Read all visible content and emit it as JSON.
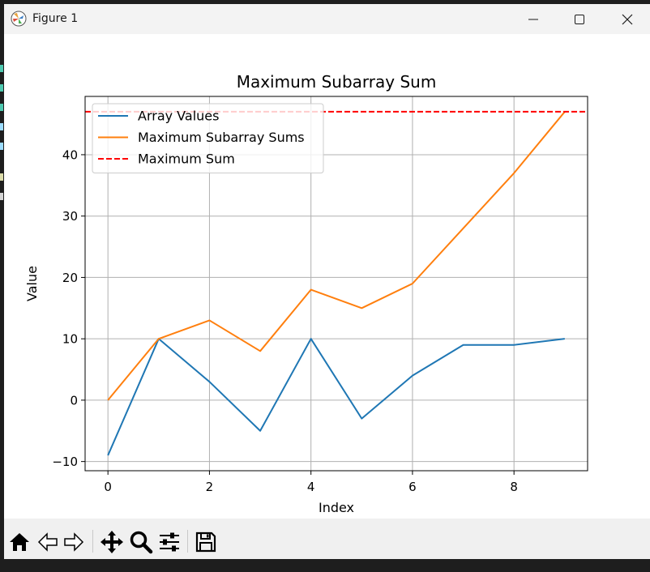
{
  "window": {
    "title": "Figure 1"
  },
  "toolbar": {
    "buttons": [
      {
        "name": "home-icon",
        "label": "Home"
      },
      {
        "name": "back-icon",
        "label": "Back"
      },
      {
        "name": "forward-icon",
        "label": "Forward"
      },
      {
        "name": "pan-icon",
        "label": "Pan"
      },
      {
        "name": "zoom-icon",
        "label": "Zoom"
      },
      {
        "name": "subplots-icon",
        "label": "Configure subplots"
      },
      {
        "name": "save-icon",
        "label": "Save"
      }
    ]
  },
  "colors": {
    "series_1": "#1f77b4",
    "series_2": "#ff7f0e",
    "max_line": "#ff0000",
    "grid": "#b0b0b0"
  },
  "chart_data": {
    "type": "line",
    "title": "Maximum Subarray Sum",
    "xlabel": "Index",
    "ylabel": "Value",
    "x": [
      0,
      1,
      2,
      3,
      4,
      5,
      6,
      7,
      8,
      9
    ],
    "series": [
      {
        "name": "Array Values",
        "values": [
          -9,
          10,
          3,
          -5,
          10,
          -3,
          4,
          9,
          9,
          10
        ],
        "style": "solid",
        "color": "#1f77b4"
      },
      {
        "name": "Maximum Subarray Sums",
        "values": [
          0,
          10,
          13,
          8,
          18,
          15,
          19,
          28,
          37,
          47
        ],
        "style": "solid",
        "color": "#ff7f0e"
      }
    ],
    "hlines": [
      {
        "name": "Maximum Sum",
        "value": 47,
        "style": "dashed",
        "color": "#ff0000"
      }
    ],
    "xlim": [
      -0.45,
      9.45
    ],
    "ylim": [
      -11.5,
      49.5
    ],
    "xticks": [
      0,
      2,
      4,
      6,
      8
    ],
    "yticks": [
      -10,
      0,
      10,
      20,
      30,
      40
    ],
    "ytick_labels": [
      "−10",
      "0",
      "10",
      "20",
      "30",
      "40"
    ],
    "grid": true,
    "legend": "top-left"
  }
}
